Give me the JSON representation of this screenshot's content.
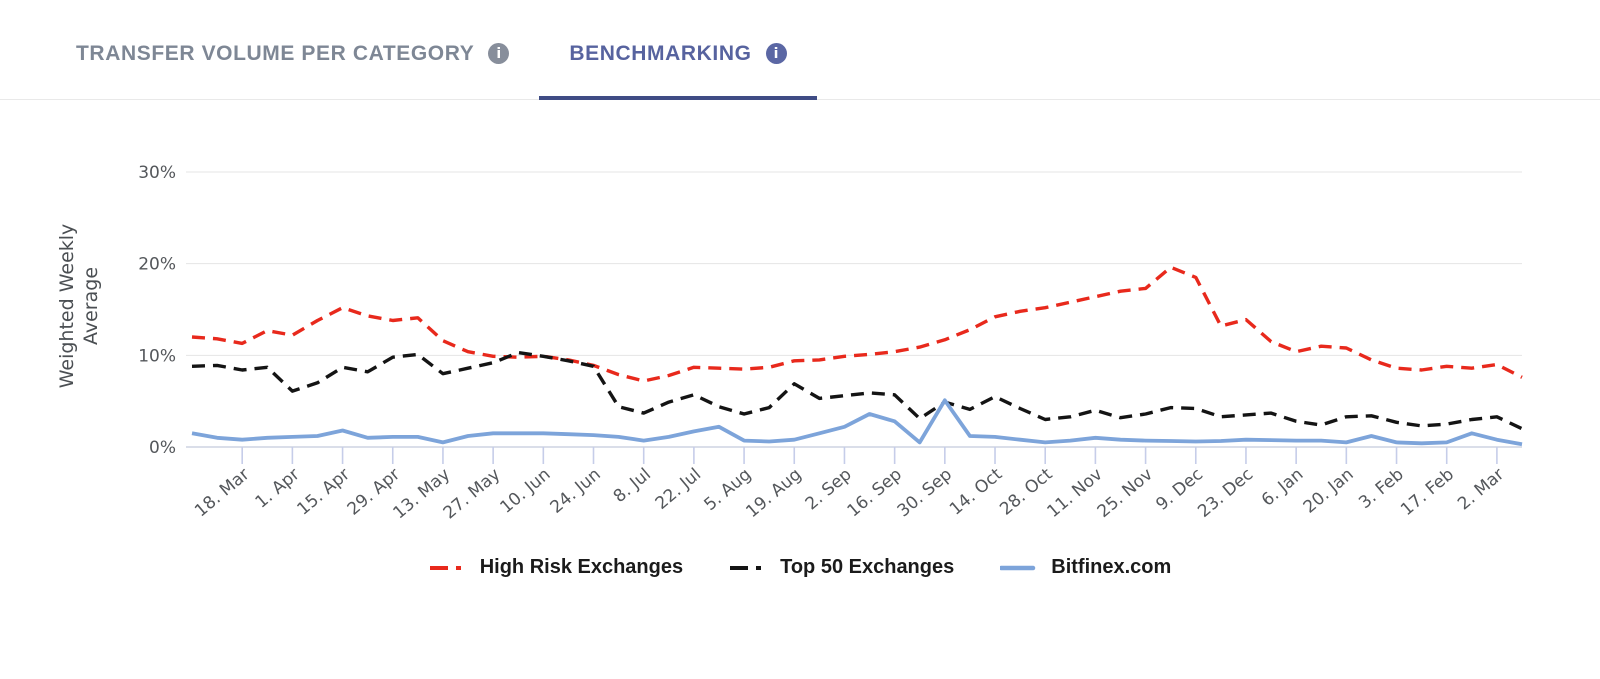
{
  "tabs": {
    "items": [
      {
        "label": "TRANSFER VOLUME PER CATEGORY",
        "active": false,
        "has_info_icon": true
      },
      {
        "label": "BENCHMARKING",
        "active": true,
        "has_info_icon": true
      }
    ]
  },
  "colors": {
    "inactive_tab_text": "#7e8795",
    "active_tab_text": "#57639f",
    "active_tab_underline": "#3f4c85",
    "inactive_info_badge": "#878e9b",
    "active_info_badge": "#5b67a4",
    "gridline": "#e4e4e4",
    "axis_line": "#cdd3e2",
    "tick_mark": "#c6cde9",
    "axis_text": "#54575b"
  },
  "info_icon_glyph": "i",
  "chart_data": {
    "type": "line",
    "title": "",
    "ylabel": "Weighted Weekly Average",
    "ylabel_lines": [
      "Weighted Weekly",
      "Average"
    ],
    "y_ticks": [
      "0%",
      "10%",
      "20%",
      "30%"
    ],
    "ylim": [
      0,
      30
    ],
    "grid": true,
    "legend_position": "bottom",
    "x_note": "weekly data points Mar 2019 - Mar 2020; axis labeled every 2 weeks",
    "x_tick_labels": [
      "18. Mar",
      "1. Apr",
      "15. Apr",
      "29. Apr",
      "13. May",
      "27. May",
      "10. Jun",
      "24. Jun",
      "8. Jul",
      "22. Jul",
      "5. Aug",
      "19. Aug",
      "2. Sep",
      "16. Sep",
      "30. Sep",
      "14. Oct",
      "28. Oct",
      "11. Nov",
      "25. Nov",
      "9. Dec",
      "23. Dec",
      "6. Jan",
      "20. Jan",
      "3. Feb",
      "17. Feb",
      "2. Mar"
    ],
    "first_label_point_index": 2,
    "label_every_n_points": 2,
    "series": [
      {
        "name": "High Risk Exchanges",
        "color": "#e8291c",
        "style": "dashed",
        "unit": "%",
        "values": [
          12.0,
          11.8,
          11.3,
          12.7,
          12.2,
          13.8,
          15.2,
          14.3,
          13.8,
          14.1,
          11.6,
          10.4,
          9.9,
          9.8,
          9.9,
          9.5,
          8.9,
          7.9,
          7.2,
          7.8,
          8.7,
          8.6,
          8.5,
          8.7,
          9.4,
          9.5,
          9.9,
          10.1,
          10.4,
          10.9,
          11.7,
          12.8,
          14.2,
          14.8,
          15.2,
          15.8,
          16.4,
          17.0,
          17.3,
          19.6,
          18.5,
          13.2,
          13.9,
          11.5,
          10.4,
          11.0,
          10.8,
          9.5,
          8.6,
          8.4,
          8.8,
          8.6,
          9.0,
          7.6
        ]
      },
      {
        "name": "Top 50 Exchanges",
        "color": "#141414",
        "style": "dashed",
        "unit": "%",
        "values": [
          8.8,
          8.9,
          8.4,
          8.7,
          6.1,
          7.0,
          8.7,
          8.2,
          9.8,
          10.1,
          8.0,
          8.6,
          9.2,
          10.3,
          9.9,
          9.4,
          8.8,
          4.4,
          3.7,
          4.9,
          5.7,
          4.4,
          3.6,
          4.3,
          6.9,
          5.3,
          5.6,
          5.9,
          5.7,
          3.1,
          4.9,
          4.1,
          5.5,
          4.2,
          3.0,
          3.3,
          4.0,
          3.2,
          3.6,
          4.3,
          4.2,
          3.3,
          3.5,
          3.7,
          2.8,
          2.4,
          3.3,
          3.4,
          2.7,
          2.3,
          2.5,
          3.0,
          3.3,
          2.0
        ]
      },
      {
        "name": "Bitfinex.com",
        "color": "#7da4da",
        "style": "solid",
        "unit": "%",
        "values": [
          1.5,
          1.0,
          0.8,
          1.0,
          1.1,
          1.2,
          1.8,
          1.0,
          1.1,
          1.1,
          0.5,
          1.2,
          1.5,
          1.5,
          1.5,
          1.4,
          1.3,
          1.1,
          0.7,
          1.1,
          1.7,
          2.2,
          0.7,
          0.6,
          0.8,
          1.5,
          2.2,
          3.6,
          2.8,
          0.5,
          5.1,
          1.2,
          1.1,
          0.8,
          0.5,
          0.7,
          1.0,
          0.8,
          0.7,
          0.65,
          0.6,
          0.65,
          0.8,
          0.75,
          0.7,
          0.7,
          0.5,
          1.2,
          0.5,
          0.4,
          0.5,
          1.5,
          0.8,
          0.3
        ]
      }
    ]
  }
}
